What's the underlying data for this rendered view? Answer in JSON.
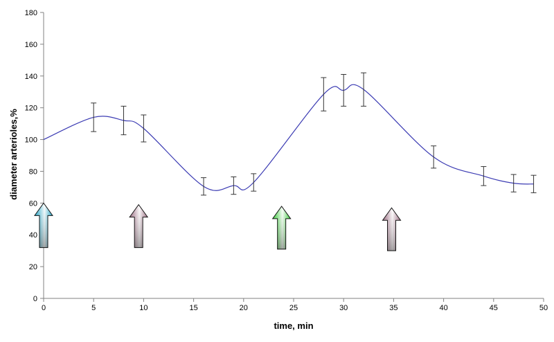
{
  "chart_data": {
    "type": "line",
    "title": "",
    "xlabel": "time, min",
    "ylabel": "diameter arterioles,%",
    "xlim": [
      0,
      50
    ],
    "ylim": [
      0,
      180
    ],
    "x_ticks": [
      0,
      5,
      10,
      15,
      20,
      25,
      30,
      35,
      40,
      45,
      50
    ],
    "y_ticks": [
      0,
      20,
      40,
      60,
      80,
      100,
      120,
      140,
      160,
      180
    ],
    "grid": false,
    "legend": "none",
    "series": [
      {
        "color": "#3b3bb3",
        "smooth": true,
        "points": [
          {
            "x": 0,
            "y": 100
          },
          {
            "x": 5,
            "y": 114,
            "err": 9
          },
          {
            "x": 8,
            "y": 112,
            "err": 9
          },
          {
            "x": 10,
            "y": 107,
            "err": 8.5
          },
          {
            "x": 16,
            "y": 70.5,
            "err": 5.5
          },
          {
            "x": 19,
            "y": 71,
            "err": 5.5
          },
          {
            "x": 21,
            "y": 73,
            "err": 5.5
          },
          {
            "x": 28,
            "y": 128.5,
            "err": 10.5
          },
          {
            "x": 30,
            "y": 131,
            "err": 10
          },
          {
            "x": 32,
            "y": 131.5,
            "err": 10.5
          },
          {
            "x": 39,
            "y": 89,
            "err": 7
          },
          {
            "x": 44,
            "y": 77,
            "err": 6
          },
          {
            "x": 47,
            "y": 72.5,
            "err": 5.5
          },
          {
            "x": 49,
            "y": 72,
            "err": 5.5
          }
        ]
      }
    ],
    "annotations": [
      {
        "kind": "arrow",
        "x": 0,
        "y_bottom": 32,
        "y_top": 60,
        "color": "#29a9c9"
      },
      {
        "kind": "arrow",
        "x": 9.5,
        "y_bottom": 32,
        "y_top": 59,
        "color": "#a27489"
      },
      {
        "kind": "arrow",
        "x": 23.8,
        "y_bottom": 31,
        "y_top": 58,
        "color": "#3ed13e"
      },
      {
        "kind": "arrow",
        "x": 34.8,
        "y_bottom": 30,
        "y_top": 57,
        "color": "#a27489"
      }
    ]
  }
}
